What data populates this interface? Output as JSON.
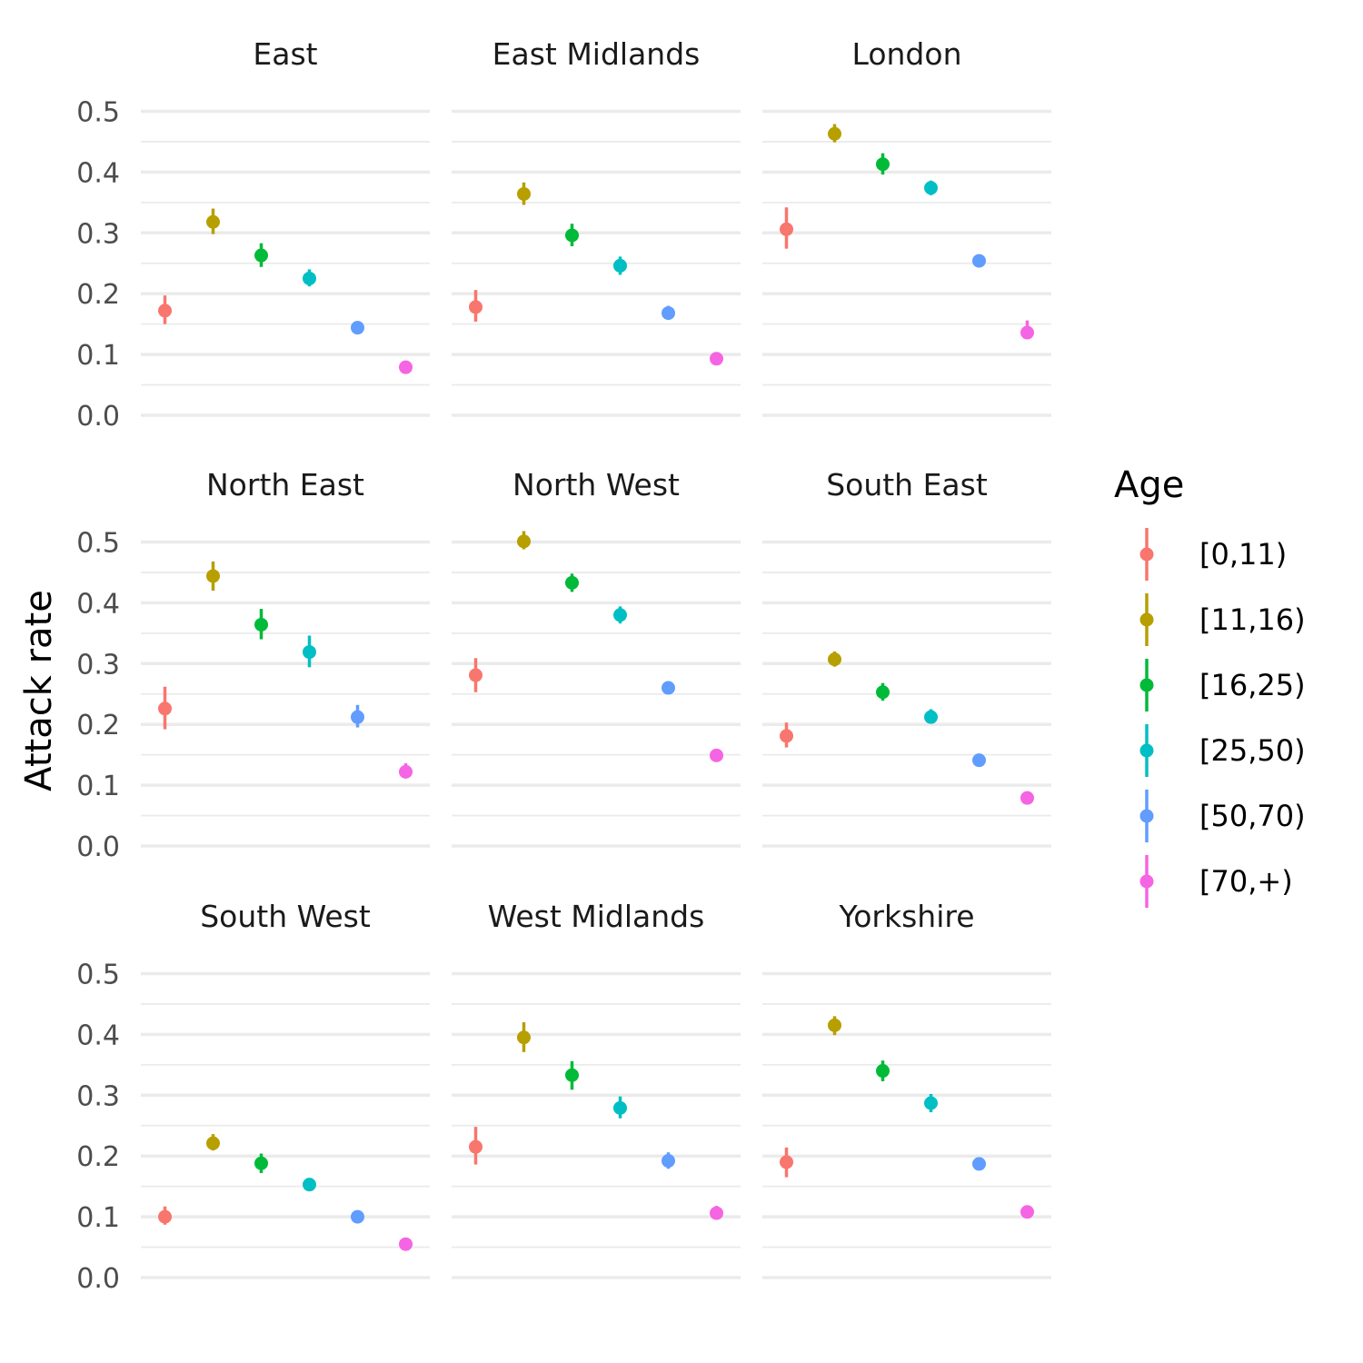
{
  "chart_data": {
    "type": "scatter",
    "subtype": "point-range, faceted 3x3",
    "title": "",
    "xlabel": "",
    "ylabel": "Attack rate",
    "ylim": [
      0,
      0.5
    ],
    "y_ticks": [
      "0.0",
      "0.1",
      "0.2",
      "0.3",
      "0.4",
      "0.5"
    ],
    "x_ticks_shown": false,
    "grid": "horizontal major and minor gridlines",
    "legend": {
      "title": "Age",
      "position": "right",
      "entries": [
        {
          "label": "[0,11)",
          "color": "#F8766D"
        },
        {
          "label": "[11,16)",
          "color": "#B79F00"
        },
        {
          "label": "[16,25)",
          "color": "#00BA38"
        },
        {
          "label": "[25,50)",
          "color": "#00BFC4"
        },
        {
          "label": "[50,70)",
          "color": "#619CFF"
        },
        {
          "label": "[70,+)",
          "color": "#F564E3"
        }
      ]
    },
    "facets": [
      {
        "name": "East",
        "values": [
          0.172,
          0.318,
          0.263,
          0.225,
          0.144,
          0.079
        ],
        "lower": [
          0.15,
          0.298,
          0.244,
          0.212,
          0.136,
          0.073
        ],
        "upper": [
          0.197,
          0.34,
          0.283,
          0.24,
          0.153,
          0.087
        ]
      },
      {
        "name": "East Midlands",
        "values": [
          0.178,
          0.364,
          0.296,
          0.246,
          0.168,
          0.093
        ],
        "lower": [
          0.154,
          0.346,
          0.278,
          0.231,
          0.157,
          0.087
        ],
        "upper": [
          0.206,
          0.383,
          0.315,
          0.261,
          0.18,
          0.1
        ]
      },
      {
        "name": "London",
        "values": [
          0.306,
          0.463,
          0.413,
          0.374,
          0.254,
          0.136
        ],
        "lower": [
          0.274,
          0.449,
          0.396,
          0.362,
          0.245,
          0.126
        ],
        "upper": [
          0.342,
          0.479,
          0.431,
          0.386,
          0.263,
          0.156
        ]
      },
      {
        "name": "North East",
        "values": [
          0.226,
          0.444,
          0.364,
          0.319,
          0.212,
          0.122
        ],
        "lower": [
          0.192,
          0.42,
          0.34,
          0.294,
          0.195,
          0.111
        ],
        "upper": [
          0.262,
          0.468,
          0.39,
          0.346,
          0.232,
          0.136
        ]
      },
      {
        "name": "North West",
        "values": [
          0.281,
          0.501,
          0.433,
          0.38,
          0.26,
          0.149
        ],
        "lower": [
          0.253,
          0.488,
          0.418,
          0.366,
          0.25,
          0.141
        ],
        "upper": [
          0.309,
          0.518,
          0.448,
          0.394,
          0.271,
          0.16
        ]
      },
      {
        "name": "South East",
        "values": [
          0.181,
          0.307,
          0.253,
          0.212,
          0.141,
          0.079
        ],
        "lower": [
          0.162,
          0.295,
          0.239,
          0.202,
          0.132,
          0.073
        ],
        "upper": [
          0.203,
          0.32,
          0.268,
          0.225,
          0.149,
          0.086
        ]
      },
      {
        "name": "South West",
        "values": [
          0.1,
          0.221,
          0.188,
          0.153,
          0.1,
          0.055
        ],
        "lower": [
          0.087,
          0.209,
          0.172,
          0.144,
          0.092,
          0.049
        ],
        "upper": [
          0.117,
          0.236,
          0.204,
          0.163,
          0.106,
          0.06
        ]
      },
      {
        "name": "West Midlands",
        "values": [
          0.215,
          0.395,
          0.333,
          0.279,
          0.192,
          0.106
        ],
        "lower": [
          0.186,
          0.371,
          0.309,
          0.262,
          0.179,
          0.096
        ],
        "upper": [
          0.248,
          0.42,
          0.356,
          0.298,
          0.206,
          0.118
        ]
      },
      {
        "name": "Yorkshire",
        "values": [
          0.19,
          0.415,
          0.34,
          0.287,
          0.187,
          0.108
        ],
        "lower": [
          0.165,
          0.399,
          0.323,
          0.272,
          0.178,
          0.101
        ],
        "upper": [
          0.214,
          0.43,
          0.357,
          0.302,
          0.197,
          0.117
        ]
      }
    ]
  }
}
